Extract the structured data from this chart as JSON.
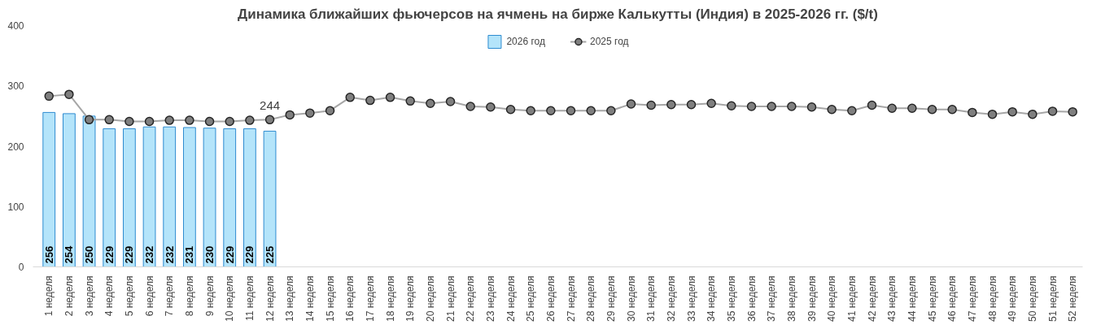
{
  "chart_data": {
    "type": "bar",
    "title": "Динамика ближайших фьючерсов на ячмень на бирже Калькутты (Индия) в 2025-2026 гг. ($/t)",
    "categories": [
      "1 неделя",
      "2 неделя",
      "3 неделя",
      "4 неделя",
      "5 неделя",
      "6 неделя",
      "7 неделя",
      "8 неделя",
      "9 неделя",
      "10 неделя",
      "11 неделя",
      "12 неделя",
      "13 неделя",
      "14 неделя",
      "15 неделя",
      "16 неделя",
      "17 неделя",
      "18 неделя",
      "19 неделя",
      "20 неделя",
      "21 неделя",
      "22 неделя",
      "23 неделя",
      "24 неделя",
      "25 неделя",
      "26 неделя",
      "27 неделя",
      "28 неделя",
      "29 неделя",
      "30 неделя",
      "31 неделя",
      "32 неделя",
      "33 неделя",
      "34 неделя",
      "35 неделя",
      "36 неделя",
      "37 неделя",
      "38 неделя",
      "39 неделя",
      "40 неделя",
      "41 неделя",
      "42 неделя",
      "43 неделя",
      "44 неделя",
      "45 неделя",
      "46 неделя",
      "47 неделя",
      "48 неделя",
      "49 неделя",
      "50 неделя",
      "51 неделя",
      "52 неделя"
    ],
    "series": [
      {
        "name": "2026 год",
        "color": "#b4e4fa",
        "data_labels": true,
        "values": [
          256,
          254,
          250,
          229,
          229,
          232,
          232,
          231,
          230,
          229,
          229,
          225,
          null,
          null,
          null,
          null,
          null,
          null,
          null,
          null,
          null,
          null,
          null,
          null,
          null,
          null,
          null,
          null,
          null,
          null,
          null,
          null,
          null,
          null,
          null,
          null,
          null,
          null,
          null,
          null,
          null,
          null,
          null,
          null,
          null,
          null,
          null,
          null,
          null,
          null,
          null,
          null
        ]
      },
      {
        "name": "2025 год",
        "type": "line",
        "color": "#a6a6a6",
        "marker": "circle",
        "values": [
          283,
          286,
          244,
          244,
          241,
          241,
          243,
          243,
          241,
          241,
          243,
          244,
          252,
          255,
          259,
          281,
          276,
          281,
          275,
          271,
          274,
          266,
          265,
          261,
          259,
          259,
          259,
          259,
          259,
          270,
          268,
          269,
          269,
          271,
          267,
          266,
          266,
          266,
          265,
          261,
          259,
          268,
          263,
          263,
          261,
          261,
          256,
          253,
          257,
          253,
          258,
          257
        ],
        "value_labels": [
          null,
          null,
          null,
          null,
          null,
          null,
          null,
          null,
          null,
          null,
          null,
          "244",
          null,
          null,
          null,
          null,
          null,
          null,
          null,
          null,
          null,
          null,
          null,
          null,
          null,
          null,
          null,
          null,
          null,
          null,
          null,
          null,
          null,
          null,
          null,
          null,
          null,
          null,
          null,
          null,
          null,
          null,
          null,
          null,
          null,
          null,
          null,
          null,
          null,
          null,
          null,
          null
        ]
      }
    ],
    "ylim": [
      0,
      400
    ],
    "yticks": [
      0,
      100,
      200,
      300,
      400
    ],
    "grid": false,
    "legend": "top"
  }
}
